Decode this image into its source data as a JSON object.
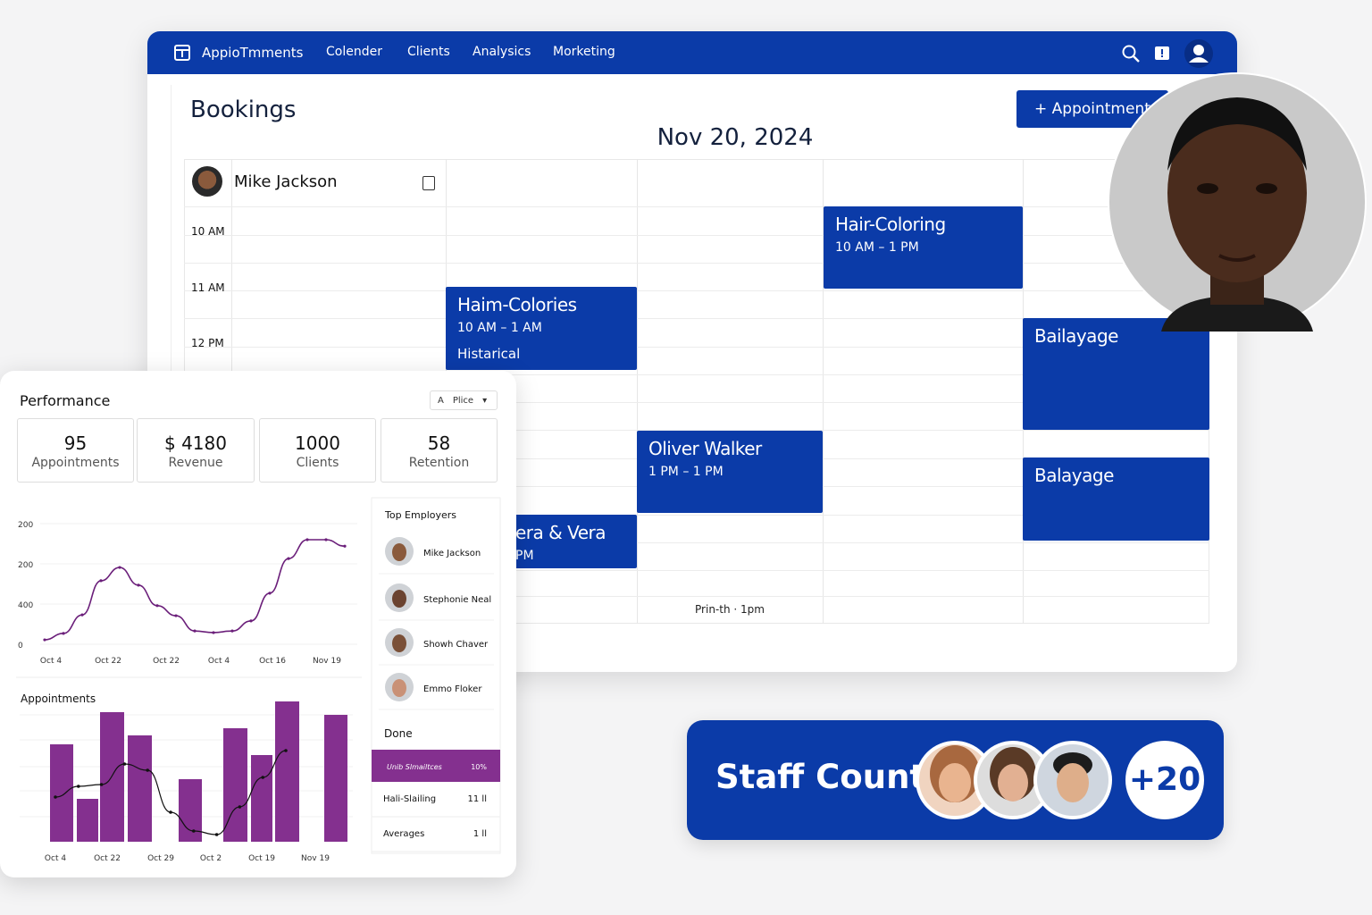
{
  "nav": {
    "brand": "AppioTmments",
    "items": [
      "Colender",
      "Clients",
      "Analysics",
      "Morketing"
    ]
  },
  "bookings": {
    "title": "Bookings",
    "button": "+ Appointment",
    "date": "Nov 20, 2024",
    "staff_name": "Mike Jackson",
    "times": [
      "10 AM",
      "11 AM",
      "12 PM"
    ],
    "events": [
      {
        "title": "Hair-Coloring",
        "time": "10 AM – 1 PM"
      },
      {
        "title": "Haim-Colories",
        "time": "10 AM – 1 AM",
        "note": "Histarical"
      },
      {
        "title": "Bailayage"
      },
      {
        "title": "Oliver Walker",
        "time": "1 PM – 1 PM"
      },
      {
        "title": "Balayage"
      },
      {
        "title": "era & Vera",
        "time": "PM"
      }
    ],
    "footer_note": "Prin-th · 1pm"
  },
  "performance": {
    "title": "Performance",
    "filter": "Plice",
    "stats": [
      {
        "value": "95",
        "label": "Appointments"
      },
      {
        "value": "$ 4180",
        "label": "Revenue"
      },
      {
        "value": "1000",
        "label": "Clients"
      },
      {
        "value": "58",
        "label": "Retention"
      }
    ],
    "line_chart": {
      "type": "line",
      "x_labels": [
        "Oct 4",
        "Oct 22",
        "Oct 22",
        "Oct 4",
        "Oct 16",
        "Nov 19"
      ],
      "values": [
        0.11,
        0.27,
        0.73,
        1.58,
        1.91,
        1.47,
        0.96,
        0.71,
        0.33,
        0.29,
        0.33,
        0.58,
        1.27,
        2.13,
        2.6,
        2.6,
        2.44
      ],
      "color": "#6b1f7a",
      "ylim": [
        0,
        3
      ],
      "yticks": [
        {
          "value": 0,
          "label": "0"
        },
        {
          "value": 1,
          "label": "400"
        },
        {
          "value": 2,
          "label": "200"
        },
        {
          "value": 3,
          "label": "200"
        }
      ]
    },
    "bar_chart": {
      "type": "bar",
      "title": "Appointments",
      "x_labels": [
        "Oct 4",
        "Oct 22",
        "Oct 29",
        "Oct 2",
        "Oct 19",
        "Nov 19"
      ],
      "values": [
        109,
        48,
        145,
        119,
        70,
        127,
        97,
        157,
        142
      ],
      "line_values": [
        50,
        62,
        64,
        87,
        80,
        33,
        12,
        8,
        39,
        72,
        102
      ],
      "color": "#84308f",
      "ylim": [
        0,
        160
      ]
    },
    "top_employers": {
      "title": "Top Employers",
      "names": [
        "Mike Jackson",
        "Stephonie Neal",
        "Showh Chaver",
        "Emmo Floker"
      ]
    },
    "done": {
      "title": "Done",
      "rows": [
        [
          "Unib Slmailtces",
          "10%"
        ],
        [
          "Hali-Slailing",
          "11 ll"
        ],
        [
          "Averages",
          "1 ll"
        ]
      ]
    }
  },
  "staff_count": {
    "title": "Staff Count",
    "extra": "+20"
  }
}
